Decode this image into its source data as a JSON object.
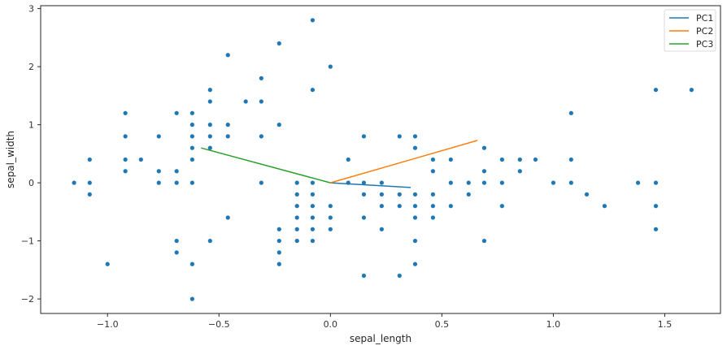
{
  "chart_data": {
    "type": "scatter",
    "title": "",
    "xlabel": "sepal_length",
    "ylabel": "sepal_width",
    "xlim": [
      -1.3,
      1.75
    ],
    "ylim": [
      -2.25,
      3.05
    ],
    "xticks": [
      -1.0,
      -0.5,
      0.0,
      0.5,
      1.0,
      1.5
    ],
    "xtick_labels": [
      "−1.0",
      "−0.5",
      "0.0",
      "0.5",
      "1.0",
      "1.5"
    ],
    "yticks": [
      -2,
      -1,
      0,
      1,
      2,
      3
    ],
    "ytick_labels": [
      "−2",
      "−1",
      "0",
      "1",
      "2",
      "3"
    ],
    "grid": false,
    "legend_position": "top-right",
    "point_color": "#1f77b4",
    "points": [
      [
        -1.15,
        0
      ],
      [
        -1.08,
        0.4
      ],
      [
        -1.08,
        0
      ],
      [
        -1.08,
        -0.2
      ],
      [
        -1.0,
        -1.4
      ],
      [
        -0.92,
        1.2
      ],
      [
        -0.92,
        0.8
      ],
      [
        -0.92,
        0.4
      ],
      [
        -0.92,
        0.2
      ],
      [
        -0.85,
        0.4
      ],
      [
        -0.77,
        0.8
      ],
      [
        -0.77,
        0.2
      ],
      [
        -0.77,
        0
      ],
      [
        -0.69,
        1.2
      ],
      [
        -0.69,
        0.2
      ],
      [
        -0.69,
        0
      ],
      [
        -0.69,
        -1.0
      ],
      [
        -0.69,
        -1.2
      ],
      [
        -0.62,
        1.2
      ],
      [
        -0.62,
        1.0
      ],
      [
        -0.62,
        0.8
      ],
      [
        -0.62,
        0.6
      ],
      [
        -0.62,
        0.4
      ],
      [
        -0.62,
        0
      ],
      [
        -0.62,
        -1.4
      ],
      [
        -0.62,
        -2.0
      ],
      [
        -0.54,
        1.6
      ],
      [
        -0.54,
        1.4
      ],
      [
        -0.54,
        1.0
      ],
      [
        -0.54,
        0.8
      ],
      [
        -0.54,
        0.6
      ],
      [
        -0.54,
        -1.0
      ],
      [
        -0.46,
        2.2
      ],
      [
        -0.46,
        1.0
      ],
      [
        -0.46,
        0.8
      ],
      [
        -0.46,
        -0.6
      ],
      [
        -0.38,
        1.4
      ],
      [
        -0.31,
        1.8
      ],
      [
        -0.31,
        1.4
      ],
      [
        -0.31,
        0.8
      ],
      [
        -0.31,
        0
      ],
      [
        -0.23,
        2.4
      ],
      [
        -0.23,
        1.0
      ],
      [
        -0.23,
        -0.8
      ],
      [
        -0.23,
        -1.0
      ],
      [
        -0.23,
        -1.2
      ],
      [
        -0.23,
        -1.4
      ],
      [
        -0.15,
        0
      ],
      [
        -0.15,
        -0.2
      ],
      [
        -0.15,
        -0.4
      ],
      [
        -0.15,
        -0.6
      ],
      [
        -0.15,
        -0.8
      ],
      [
        -0.15,
        -1.0
      ],
      [
        -0.08,
        2.8
      ],
      [
        -0.08,
        1.6
      ],
      [
        -0.08,
        0
      ],
      [
        -0.08,
        -0.2
      ],
      [
        -0.08,
        -0.4
      ],
      [
        -0.08,
        -0.6
      ],
      [
        -0.08,
        -0.8
      ],
      [
        -0.08,
        -1.0
      ],
      [
        0.0,
        2.0
      ],
      [
        0.0,
        -0.4
      ],
      [
        0.0,
        -0.6
      ],
      [
        0.0,
        -0.8
      ],
      [
        0.08,
        0.4
      ],
      [
        0.08,
        0
      ],
      [
        0.15,
        0.8
      ],
      [
        0.15,
        0
      ],
      [
        0.15,
        -0.2
      ],
      [
        0.15,
        -0.6
      ],
      [
        0.15,
        -1.6
      ],
      [
        0.23,
        0
      ],
      [
        0.23,
        -0.2
      ],
      [
        0.23,
        -0.4
      ],
      [
        0.23,
        -0.8
      ],
      [
        0.31,
        0.8
      ],
      [
        0.31,
        -0.2
      ],
      [
        0.31,
        -0.4
      ],
      [
        0.31,
        -1.6
      ],
      [
        0.38,
        0.8
      ],
      [
        0.38,
        0.6
      ],
      [
        0.38,
        -0.2
      ],
      [
        0.38,
        -0.4
      ],
      [
        0.38,
        -0.6
      ],
      [
        0.38,
        -1.0
      ],
      [
        0.38,
        -1.4
      ],
      [
        0.46,
        0.4
      ],
      [
        0.46,
        0.2
      ],
      [
        0.46,
        -0.2
      ],
      [
        0.46,
        -0.4
      ],
      [
        0.46,
        -0.6
      ],
      [
        0.54,
        0.4
      ],
      [
        0.54,
        0
      ],
      [
        0.54,
        -0.4
      ],
      [
        0.62,
        0
      ],
      [
        0.62,
        -0.2
      ],
      [
        0.69,
        0.6
      ],
      [
        0.69,
        0.2
      ],
      [
        0.69,
        0
      ],
      [
        0.69,
        -1.0
      ],
      [
        0.77,
        0.4
      ],
      [
        0.77,
        0
      ],
      [
        0.77,
        -0.4
      ],
      [
        0.85,
        0.4
      ],
      [
        0.85,
        0.2
      ],
      [
        0.92,
        0.4
      ],
      [
        1.0,
        0
      ],
      [
        1.08,
        1.2
      ],
      [
        1.08,
        0.4
      ],
      [
        1.08,
        0
      ],
      [
        1.15,
        -0.2
      ],
      [
        1.23,
        -0.4
      ],
      [
        1.38,
        0
      ],
      [
        1.46,
        1.6
      ],
      [
        1.46,
        0
      ],
      [
        1.46,
        -0.4
      ],
      [
        1.46,
        -0.8
      ],
      [
        1.62,
        1.6
      ]
    ],
    "series": [
      {
        "name": "PC1",
        "color": "#1f77b4",
        "x": [
          0.0,
          0.36
        ],
        "y": [
          0.0,
          -0.08
        ]
      },
      {
        "name": "PC2",
        "color": "#ff7f0e",
        "x": [
          0.0,
          0.66
        ],
        "y": [
          0.0,
          0.73
        ]
      },
      {
        "name": "PC3",
        "color": "#2ca02c",
        "x": [
          0.0,
          -0.58
        ],
        "y": [
          0.0,
          0.6
        ]
      }
    ]
  }
}
